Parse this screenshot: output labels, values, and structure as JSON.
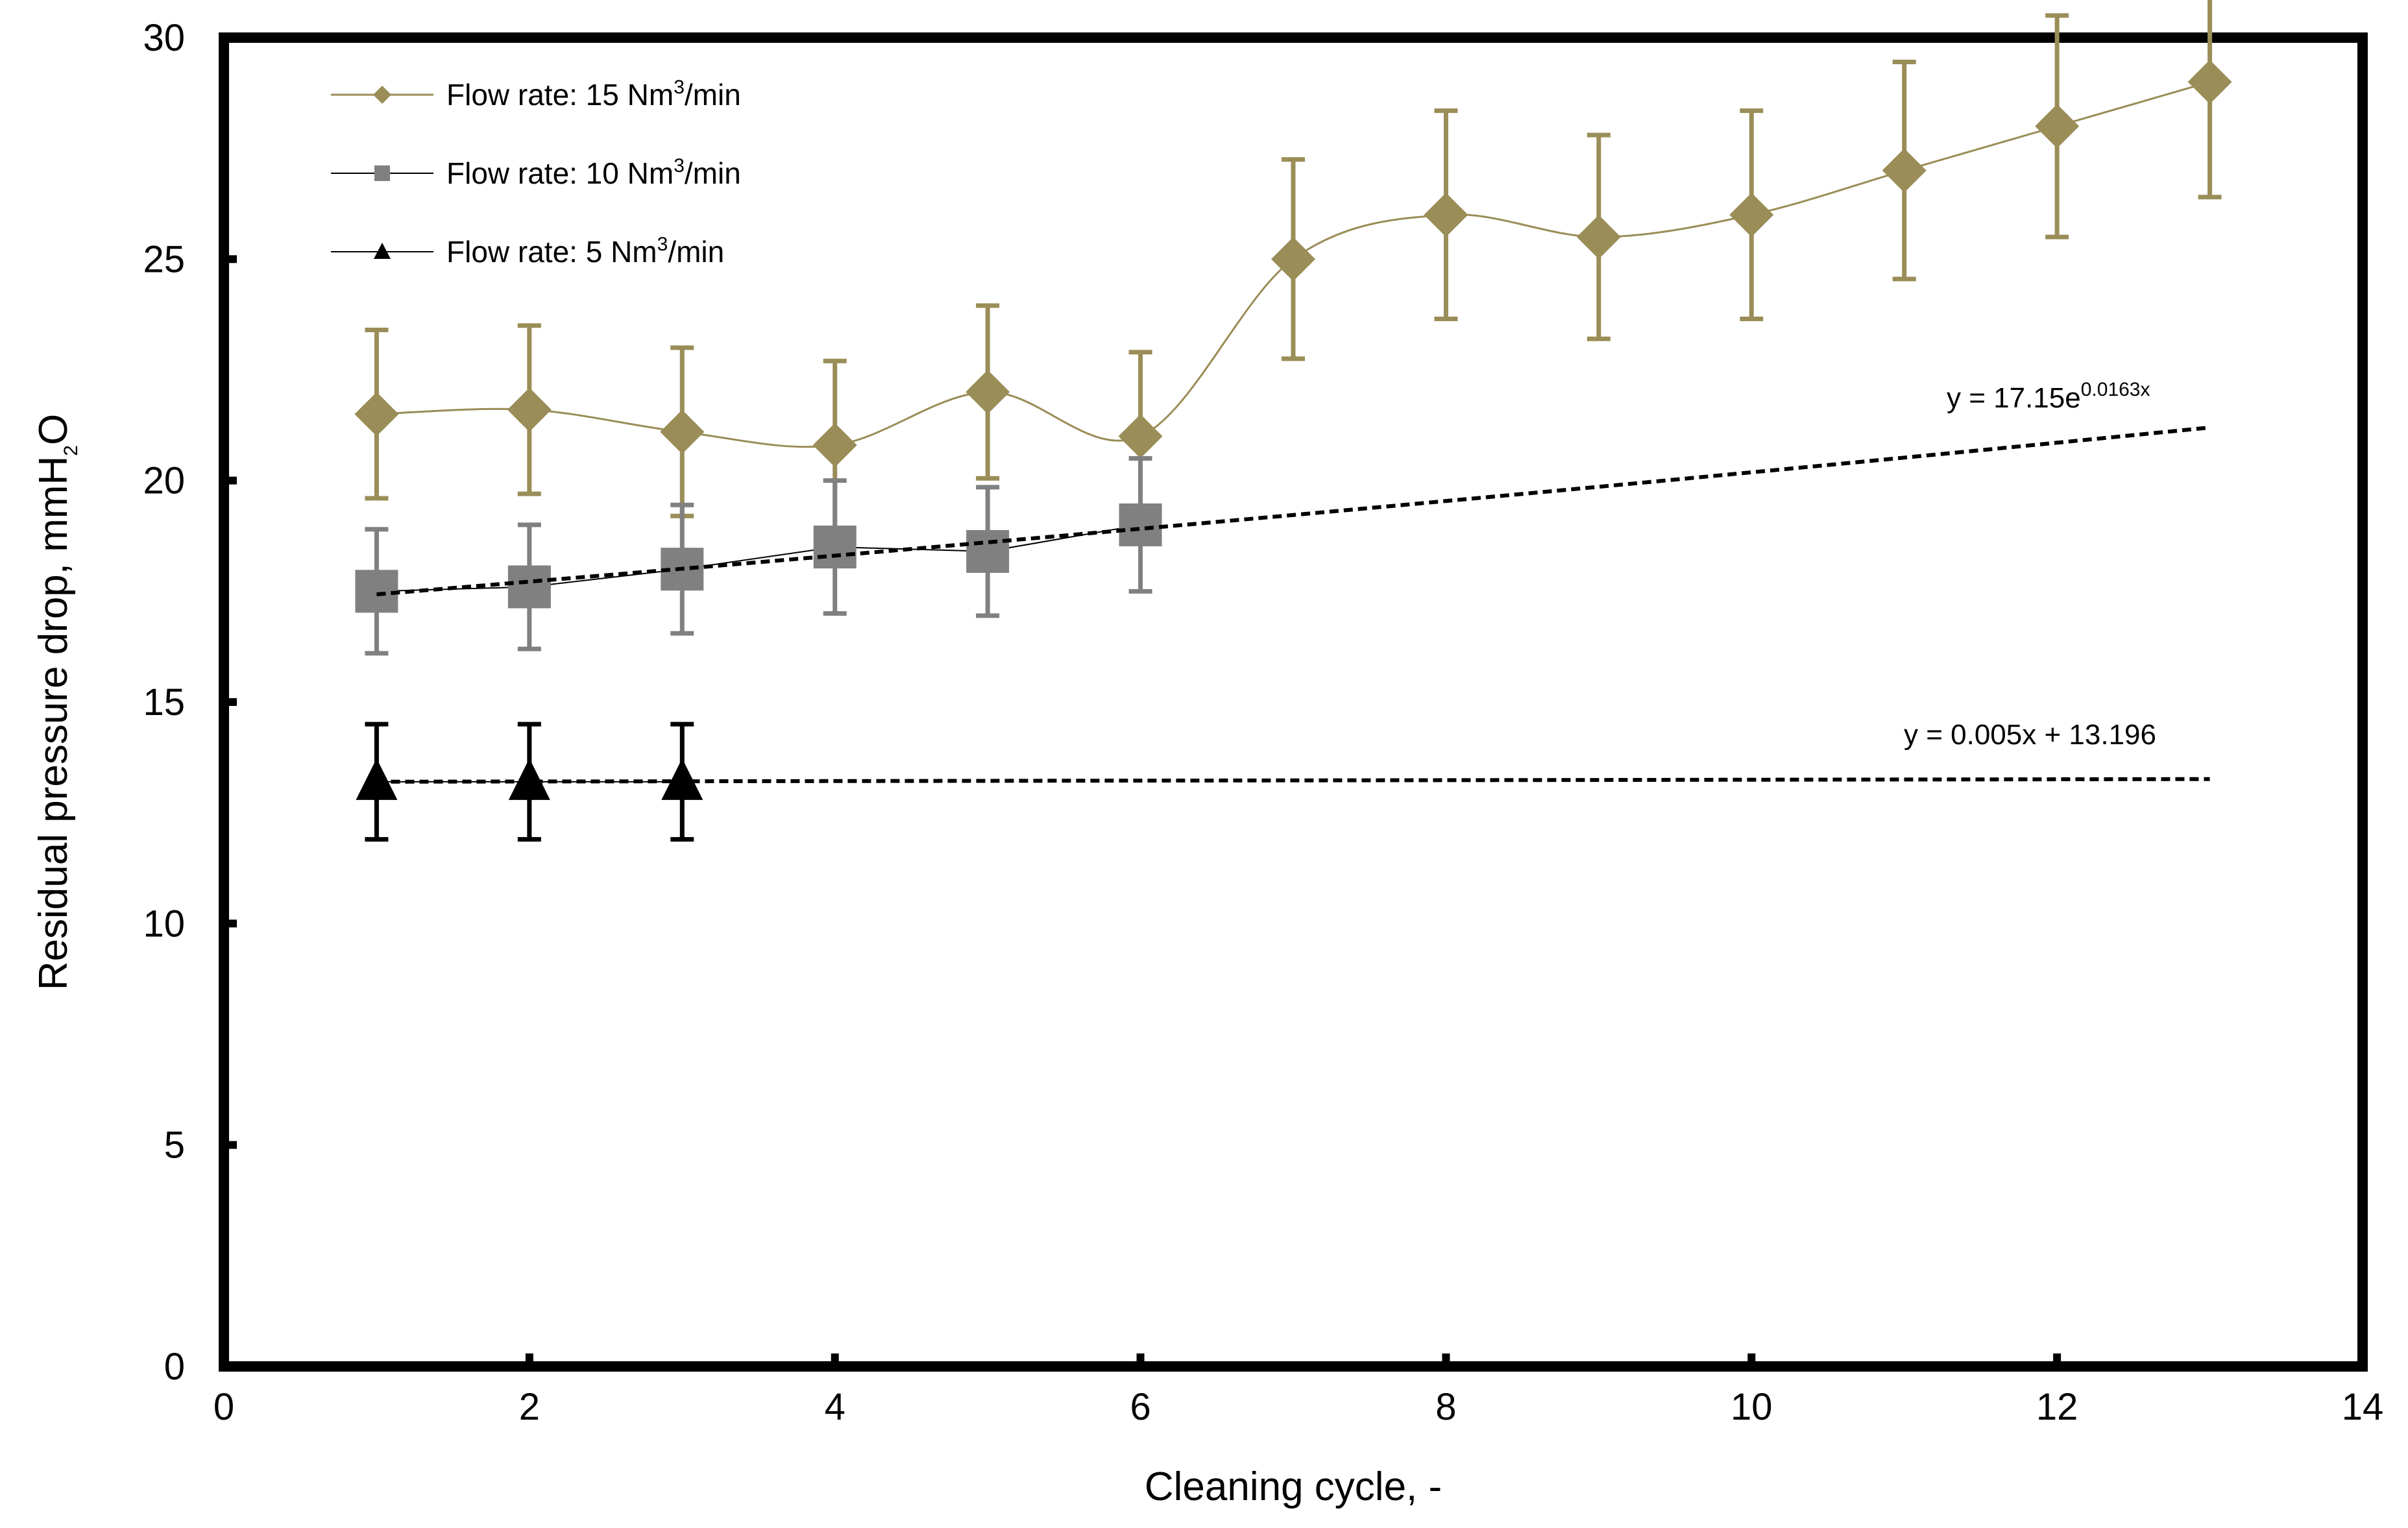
{
  "chart_data": {
    "type": "line",
    "title": "",
    "xlabel": "Cleaning cycle, -",
    "ylabel": {
      "prefix": "Residual pressure drop, mmH",
      "sub": "2",
      "suffix": "O"
    },
    "xlim": [
      0,
      14
    ],
    "ylim": [
      0,
      30
    ],
    "xticks": [
      0,
      2,
      4,
      6,
      8,
      10,
      12,
      14
    ],
    "yticks": [
      0,
      5,
      10,
      15,
      20,
      25,
      30
    ],
    "grid": false,
    "legend_position": "top-left",
    "series": [
      {
        "name": "Flow rate: 15 Nm3/min",
        "legend": {
          "prefix": "Flow rate: 15 Nm",
          "sup": "3",
          "suffix": "/min"
        },
        "marker": "diamond",
        "color": "#9a8d57",
        "smooth": true,
        "x": [
          1,
          2,
          3,
          4,
          5,
          6,
          7,
          8,
          9,
          10,
          11,
          12,
          13
        ],
        "y": [
          21.5,
          21.6,
          21.1,
          20.8,
          22.0,
          21.0,
          25.0,
          26.0,
          25.5,
          26.0,
          27.0,
          28.0,
          29.0
        ],
        "error": [
          1.9,
          1.9,
          1.9,
          1.9,
          1.95,
          1.9,
          2.25,
          2.35,
          2.3,
          2.35,
          2.45,
          2.5,
          2.6
        ]
      },
      {
        "name": "Flow rate: 10 Nm3/min",
        "legend": {
          "prefix": "Flow rate: 10 Nm",
          "sup": "3",
          "suffix": "/min"
        },
        "marker": "square",
        "color": "#808080",
        "smooth": false,
        "x": [
          1,
          2,
          3,
          4,
          5,
          6
        ],
        "y": [
          17.5,
          17.6,
          18.0,
          18.5,
          18.4,
          19.0
        ],
        "error": [
          1.4,
          1.4,
          1.45,
          1.5,
          1.45,
          1.5
        ]
      },
      {
        "name": "Flow rate: 5 Nm3/min",
        "legend": {
          "prefix": "Flow rate: 5 Nm",
          "sup": "3",
          "suffix": "/min"
        },
        "marker": "triangle",
        "color": "#000000",
        "smooth": false,
        "x": [
          1,
          2,
          3
        ],
        "y": [
          13.2,
          13.2,
          13.2
        ],
        "error": [
          1.3,
          1.3,
          1.3
        ]
      }
    ],
    "trendlines": [
      {
        "type": "exponential",
        "a": 17.15,
        "b": 0.0163,
        "x_range": [
          1,
          13
        ],
        "label": {
          "prefix": "y = 17.15e",
          "sup": "0.0163x"
        }
      },
      {
        "type": "linear",
        "slope": 0.005,
        "intercept": 13.196,
        "x_range": [
          1,
          13
        ],
        "label": {
          "text": "y = 0.005x + 13.196"
        }
      }
    ]
  }
}
